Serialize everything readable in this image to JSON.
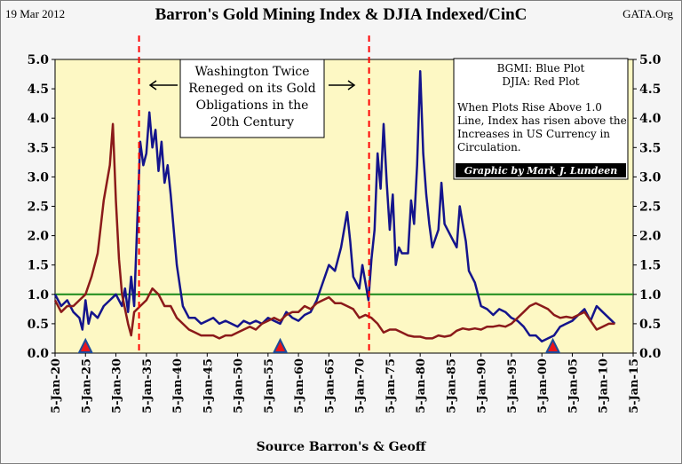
{
  "header": {
    "date": "19 Mar 2012",
    "source_site": "GATA.Org"
  },
  "chart_data": {
    "type": "line",
    "title": "Barron's Gold Mining Index & DJIA Indexed/CinC",
    "xlabel": "Source Barron's & Geoff",
    "ylabel": "",
    "ylim": [
      0,
      5
    ],
    "y_ticks": [
      "0.0",
      "0.5",
      "1.0",
      "1.5",
      "2.0",
      "2.5",
      "3.0",
      "3.5",
      "4.0",
      "4.5",
      "5.0"
    ],
    "x_range": [
      1920,
      2015
    ],
    "x_ticks": [
      {
        "year": 1920,
        "label": "5-Jan-20"
      },
      {
        "year": 1925,
        "label": "5-Jan-25"
      },
      {
        "year": 1930,
        "label": "5-Jan-30"
      },
      {
        "year": 1935,
        "label": "5-Jan-35"
      },
      {
        "year": 1940,
        "label": "5-Jan-40"
      },
      {
        "year": 1945,
        "label": "5-Jan-45"
      },
      {
        "year": 1950,
        "label": "5-Jan-50"
      },
      {
        "year": 1955,
        "label": "5-Jan-55"
      },
      {
        "year": 1960,
        "label": "5-Jan-60"
      },
      {
        "year": 1965,
        "label": "5-Jan-65"
      },
      {
        "year": 1970,
        "label": "5-Jan-70"
      },
      {
        "year": 1975,
        "label": "5-Jan-75"
      },
      {
        "year": 1980,
        "label": "5-Jan-80"
      },
      {
        "year": 1985,
        "label": "5-Jan-85"
      },
      {
        "year": 1990,
        "label": "5-Jan-90"
      },
      {
        "year": 1995,
        "label": "5-Jan-95"
      },
      {
        "year": 2000,
        "label": "5-Jan-00"
      },
      {
        "year": 2005,
        "label": "5-Jan-05"
      },
      {
        "year": 2010,
        "label": "5-Jan-10"
      },
      {
        "year": 2015,
        "label": "5-Jan-15"
      }
    ],
    "grid": false,
    "plot_background": "#fdf8c4",
    "reference_line": {
      "y": 1.0,
      "color": "#1a8a1a"
    },
    "vertical_markers": [
      {
        "year": 1933.8,
        "color": "#ff0000"
      },
      {
        "year": 1971.6,
        "color": "#ff0000"
      }
    ],
    "triangle_markers": [
      {
        "year": 1925.0
      },
      {
        "year": 1957.0
      },
      {
        "year": 2001.8
      }
    ],
    "series": [
      {
        "name": "BGMI",
        "color": "#14148c",
        "x": [
          1920,
          1921,
          1922,
          1923,
          1924,
          1924.5,
          1925,
          1925.5,
          1926,
          1927,
          1928,
          1929,
          1930,
          1931,
          1931.5,
          1932,
          1932.5,
          1933,
          1933.5,
          1934,
          1934.5,
          1935,
          1935.5,
          1936,
          1936.5,
          1937,
          1937.5,
          1938,
          1938.5,
          1939,
          1940,
          1941,
          1942,
          1943,
          1944,
          1945,
          1946,
          1947,
          1948,
          1949,
          1950,
          1951,
          1952,
          1953,
          1954,
          1955,
          1956,
          1957,
          1958,
          1959,
          1960,
          1961,
          1962,
          1963,
          1964,
          1965,
          1966,
          1967,
          1968,
          1968.5,
          1969,
          1970,
          1970.5,
          1971,
          1971.5,
          1972,
          1972.5,
          1973,
          1973.5,
          1974,
          1974.5,
          1975,
          1975.5,
          1976,
          1976.5,
          1977,
          1978,
          1978.5,
          1979,
          1979.5,
          1980,
          1980.5,
          1981,
          1981.5,
          1982,
          1983,
          1983.5,
          1984,
          1985,
          1986,
          1986.5,
          1987,
          1987.5,
          1988,
          1989,
          1990,
          1991,
          1992,
          1993,
          1994,
          1995,
          1996,
          1997,
          1998,
          1999,
          2000,
          2001,
          2002,
          2003,
          2004,
          2005,
          2006,
          2007,
          2008,
          2009,
          2010,
          2011,
          2012
        ],
        "y": [
          1.0,
          0.8,
          0.9,
          0.7,
          0.6,
          0.4,
          0.9,
          0.5,
          0.7,
          0.6,
          0.8,
          0.9,
          1.0,
          0.8,
          1.1,
          0.7,
          1.3,
          0.8,
          2.2,
          3.6,
          3.2,
          3.4,
          4.1,
          3.5,
          3.8,
          3.1,
          3.6,
          2.9,
          3.2,
          2.7,
          1.5,
          0.8,
          0.6,
          0.6,
          0.5,
          0.55,
          0.6,
          0.5,
          0.55,
          0.5,
          0.45,
          0.55,
          0.5,
          0.55,
          0.5,
          0.6,
          0.55,
          0.5,
          0.7,
          0.6,
          0.55,
          0.65,
          0.7,
          0.9,
          1.2,
          1.5,
          1.4,
          1.8,
          2.4,
          1.9,
          1.3,
          1.1,
          1.5,
          1.2,
          0.9,
          1.6,
          2.1,
          3.4,
          2.8,
          3.9,
          2.9,
          2.1,
          2.7,
          1.5,
          1.8,
          1.7,
          1.7,
          2.6,
          2.2,
          3.2,
          4.8,
          3.4,
          2.7,
          2.2,
          1.8,
          2.1,
          2.9,
          2.2,
          2.0,
          1.8,
          2.5,
          2.2,
          1.9,
          1.4,
          1.2,
          0.8,
          0.75,
          0.65,
          0.75,
          0.7,
          0.6,
          0.55,
          0.45,
          0.3,
          0.3,
          0.2,
          0.25,
          0.3,
          0.45,
          0.5,
          0.55,
          0.65,
          0.75,
          0.55,
          0.8,
          0.7,
          0.6,
          0.5
        ]
      },
      {
        "name": "DJIA",
        "color": "#8b1a1a",
        "x": [
          1920,
          1921,
          1922,
          1923,
          1924,
          1925,
          1926,
          1927,
          1928,
          1929,
          1929.5,
          1930,
          1930.5,
          1931,
          1932,
          1932.5,
          1933,
          1934,
          1935,
          1936,
          1937,
          1938,
          1939,
          1940,
          1941,
          1942,
          1943,
          1944,
          1945,
          1946,
          1947,
          1948,
          1949,
          1950,
          1951,
          1952,
          1953,
          1954,
          1955,
          1956,
          1957,
          1958,
          1959,
          1960,
          1961,
          1962,
          1963,
          1964,
          1965,
          1966,
          1967,
          1968,
          1969,
          1970,
          1971,
          1972,
          1973,
          1974,
          1975,
          1976,
          1977,
          1978,
          1979,
          1980,
          1981,
          1982,
          1983,
          1984,
          1985,
          1986,
          1987,
          1988,
          1989,
          1990,
          1991,
          1992,
          1993,
          1994,
          1995,
          1996,
          1997,
          1998,
          1999,
          2000,
          2001,
          2002,
          2003,
          2004,
          2005,
          2006,
          2007,
          2008,
          2009,
          2010,
          2011,
          2012
        ],
        "y": [
          0.9,
          0.7,
          0.8,
          0.8,
          0.9,
          1.0,
          1.3,
          1.7,
          2.6,
          3.2,
          3.9,
          2.6,
          1.6,
          1.0,
          0.5,
          0.3,
          0.7,
          0.8,
          0.9,
          1.1,
          1.0,
          0.8,
          0.8,
          0.6,
          0.5,
          0.4,
          0.35,
          0.3,
          0.3,
          0.3,
          0.25,
          0.3,
          0.3,
          0.35,
          0.4,
          0.45,
          0.4,
          0.5,
          0.55,
          0.6,
          0.55,
          0.65,
          0.7,
          0.7,
          0.8,
          0.75,
          0.85,
          0.9,
          0.95,
          0.85,
          0.85,
          0.8,
          0.75,
          0.6,
          0.65,
          0.6,
          0.5,
          0.35,
          0.4,
          0.4,
          0.35,
          0.3,
          0.28,
          0.28,
          0.25,
          0.25,
          0.3,
          0.28,
          0.3,
          0.38,
          0.42,
          0.4,
          0.42,
          0.4,
          0.45,
          0.45,
          0.47,
          0.45,
          0.5,
          0.6,
          0.7,
          0.8,
          0.85,
          0.8,
          0.75,
          0.65,
          0.6,
          0.62,
          0.6,
          0.65,
          0.7,
          0.55,
          0.4,
          0.45,
          0.5,
          0.5
        ]
      }
    ],
    "annotations": {
      "center_box": [
        "Washington Twice",
        "Reneged on its Gold",
        "Obligations in the",
        "20th Century"
      ],
      "legend_box": {
        "lines": [
          "BGMI: Blue Plot",
          "DJIA: Red Plot"
        ],
        "note": [
          "When Plots Rise Above 1.0",
          "Line, Index has risen above the",
          "Increases in US Currency in",
          "Circulation."
        ],
        "credit": "Graphic by Mark J. Lundeen"
      }
    }
  }
}
